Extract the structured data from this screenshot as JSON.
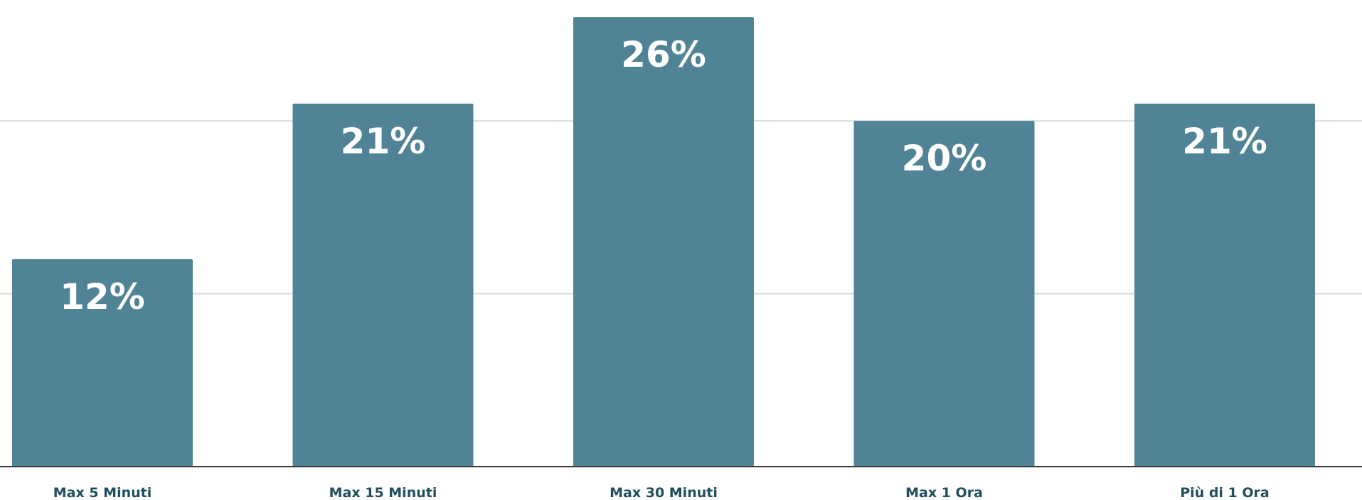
{
  "chart_data": {
    "type": "bar",
    "categories": [
      "Max 5 Minuti",
      "Max 15 Minuti",
      "Max 30 Minuti",
      "Max 1 Ora",
      "Più di 1 Ora"
    ],
    "values": [
      12,
      21,
      26,
      20,
      21
    ],
    "value_labels": [
      "12%",
      "21%",
      "26%",
      "20%",
      "21%"
    ],
    "title": "",
    "xlabel": "",
    "ylabel": "",
    "ylim": [
      0,
      26.5
    ],
    "gridlines": [
      10,
      20
    ],
    "grid": true,
    "legend": "none",
    "colors": {
      "bar": "#518396",
      "grid": "#d9d9d9",
      "axis": "#3a3a3a",
      "category_text": "#1f4e5f"
    }
  }
}
